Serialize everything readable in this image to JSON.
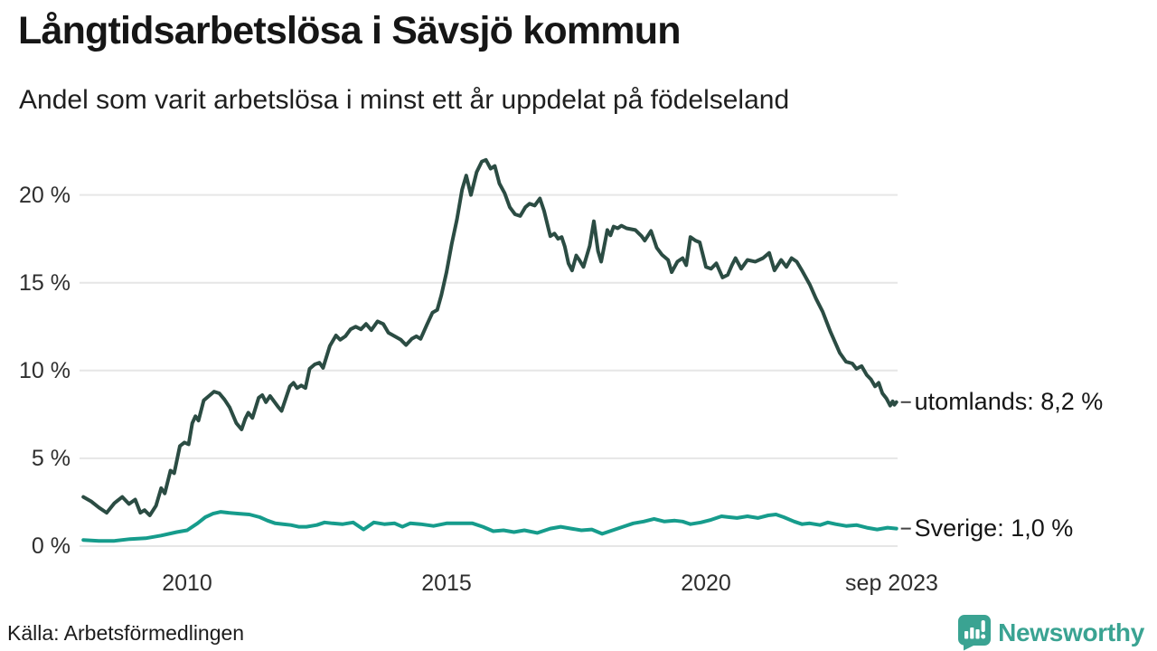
{
  "header": {
    "title": "Långtidsarbetslösa i Sävsjö kommun",
    "subtitle": "Andel som varit arbetslösa i minst ett år uppdelat på födelseland"
  },
  "footer": {
    "source": "Källa: Arbetsförmedlingen",
    "brand": "Newsworthy",
    "brand_color": "#3aa392",
    "logo_icon": "bar-chart-speech-bubble-icon"
  },
  "chart_data": {
    "type": "line",
    "title": "Långtidsarbetslösa i Sävsjö kommun",
    "subtitle": "Andel som varit arbetslösa i minst ett år uppdelat på födelseland",
    "grid": true,
    "legend_position": "end-of-line-labels",
    "background": "#ffffff",
    "gridline_color": "#e6e6e6",
    "x_axis": {
      "min": 2008.0,
      "max": 2023.75,
      "ticks": [
        {
          "value": 2010,
          "label": "2010"
        },
        {
          "value": 2015,
          "label": "2015"
        },
        {
          "value": 2020,
          "label": "2020"
        },
        {
          "value": 2023.58,
          "label": "sep 2023"
        }
      ]
    },
    "y_axis": {
      "min": 0,
      "max": 22.5,
      "unit": "%",
      "ticks": [
        {
          "value": 0,
          "label": "0 %"
        },
        {
          "value": 5,
          "label": "5 %"
        },
        {
          "value": 10,
          "label": "10 %"
        },
        {
          "value": 15,
          "label": "15 %"
        },
        {
          "value": 20,
          "label": "20 %"
        }
      ]
    },
    "series": [
      {
        "name": "utomlands",
        "color": "#2b4c43",
        "last_value_label": "8,2 %",
        "end_label": "utomlands: 8,2 %",
        "points": [
          [
            2008.0,
            2.8
          ],
          [
            2008.15,
            2.55
          ],
          [
            2008.3,
            2.2
          ],
          [
            2008.45,
            1.9
          ],
          [
            2008.6,
            2.45
          ],
          [
            2008.75,
            2.8
          ],
          [
            2008.88,
            2.4
          ],
          [
            2009.0,
            2.65
          ],
          [
            2009.1,
            1.9
          ],
          [
            2009.18,
            2.05
          ],
          [
            2009.28,
            1.75
          ],
          [
            2009.4,
            2.3
          ],
          [
            2009.5,
            3.3
          ],
          [
            2009.57,
            3.0
          ],
          [
            2009.68,
            4.3
          ],
          [
            2009.75,
            4.15
          ],
          [
            2009.86,
            5.7
          ],
          [
            2009.95,
            5.9
          ],
          [
            2010.03,
            5.8
          ],
          [
            2010.1,
            7.0
          ],
          [
            2010.16,
            7.4
          ],
          [
            2010.22,
            7.15
          ],
          [
            2010.32,
            8.3
          ],
          [
            2010.42,
            8.55
          ],
          [
            2010.52,
            8.8
          ],
          [
            2010.62,
            8.7
          ],
          [
            2010.72,
            8.35
          ],
          [
            2010.82,
            7.9
          ],
          [
            2010.95,
            7.0
          ],
          [
            2011.05,
            6.65
          ],
          [
            2011.12,
            7.25
          ],
          [
            2011.18,
            7.6
          ],
          [
            2011.26,
            7.3
          ],
          [
            2011.38,
            8.45
          ],
          [
            2011.45,
            8.6
          ],
          [
            2011.52,
            8.2
          ],
          [
            2011.6,
            8.55
          ],
          [
            2011.75,
            7.95
          ],
          [
            2011.82,
            7.7
          ],
          [
            2011.98,
            9.1
          ],
          [
            2012.05,
            9.3
          ],
          [
            2012.12,
            9.0
          ],
          [
            2012.2,
            9.15
          ],
          [
            2012.28,
            9.0
          ],
          [
            2012.36,
            10.1
          ],
          [
            2012.46,
            10.35
          ],
          [
            2012.55,
            10.45
          ],
          [
            2012.62,
            10.15
          ],
          [
            2012.75,
            11.4
          ],
          [
            2012.87,
            12.0
          ],
          [
            2012.95,
            11.75
          ],
          [
            2013.05,
            11.95
          ],
          [
            2013.15,
            12.35
          ],
          [
            2013.25,
            12.5
          ],
          [
            2013.35,
            12.35
          ],
          [
            2013.45,
            12.65
          ],
          [
            2013.55,
            12.3
          ],
          [
            2013.67,
            12.8
          ],
          [
            2013.78,
            12.65
          ],
          [
            2013.88,
            12.15
          ],
          [
            2014.0,
            11.95
          ],
          [
            2014.12,
            11.75
          ],
          [
            2014.22,
            11.45
          ],
          [
            2014.33,
            11.8
          ],
          [
            2014.42,
            11.95
          ],
          [
            2014.5,
            11.8
          ],
          [
            2014.62,
            12.6
          ],
          [
            2014.73,
            13.3
          ],
          [
            2014.82,
            13.45
          ],
          [
            2014.9,
            14.3
          ],
          [
            2015.0,
            15.6
          ],
          [
            2015.1,
            17.2
          ],
          [
            2015.2,
            18.6
          ],
          [
            2015.3,
            20.3
          ],
          [
            2015.38,
            21.1
          ],
          [
            2015.47,
            20.0
          ],
          [
            2015.58,
            21.3
          ],
          [
            2015.68,
            21.9
          ],
          [
            2015.76,
            22.0
          ],
          [
            2015.85,
            21.5
          ],
          [
            2015.93,
            21.65
          ],
          [
            2016.02,
            20.65
          ],
          [
            2016.12,
            20.1
          ],
          [
            2016.22,
            19.3
          ],
          [
            2016.32,
            18.9
          ],
          [
            2016.42,
            18.8
          ],
          [
            2016.52,
            19.3
          ],
          [
            2016.6,
            19.5
          ],
          [
            2016.7,
            19.4
          ],
          [
            2016.8,
            19.8
          ],
          [
            2016.88,
            19.1
          ],
          [
            2017.0,
            17.65
          ],
          [
            2017.08,
            17.8
          ],
          [
            2017.15,
            17.5
          ],
          [
            2017.22,
            17.6
          ],
          [
            2017.28,
            17.05
          ],
          [
            2017.35,
            16.1
          ],
          [
            2017.42,
            15.7
          ],
          [
            2017.5,
            16.55
          ],
          [
            2017.56,
            16.3
          ],
          [
            2017.64,
            15.9
          ],
          [
            2017.76,
            17.1
          ],
          [
            2017.84,
            18.5
          ],
          [
            2017.92,
            16.8
          ],
          [
            2017.98,
            16.2
          ],
          [
            2018.1,
            18.0
          ],
          [
            2018.16,
            17.7
          ],
          [
            2018.22,
            18.2
          ],
          [
            2018.3,
            18.1
          ],
          [
            2018.37,
            18.25
          ],
          [
            2018.47,
            18.1
          ],
          [
            2018.64,
            18.0
          ],
          [
            2018.76,
            17.65
          ],
          [
            2018.82,
            17.4
          ],
          [
            2018.94,
            17.95
          ],
          [
            2019.05,
            17.0
          ],
          [
            2019.15,
            16.6
          ],
          [
            2019.27,
            16.3
          ],
          [
            2019.34,
            15.6
          ],
          [
            2019.45,
            16.2
          ],
          [
            2019.55,
            16.4
          ],
          [
            2019.62,
            16.0
          ],
          [
            2019.7,
            17.6
          ],
          [
            2019.8,
            17.4
          ],
          [
            2019.88,
            17.3
          ],
          [
            2020.0,
            15.9
          ],
          [
            2020.1,
            15.8
          ],
          [
            2020.2,
            16.1
          ],
          [
            2020.32,
            15.3
          ],
          [
            2020.42,
            15.45
          ],
          [
            2020.5,
            16.0
          ],
          [
            2020.57,
            16.4
          ],
          [
            2020.68,
            15.8
          ],
          [
            2020.8,
            16.3
          ],
          [
            2020.95,
            16.2
          ],
          [
            2021.1,
            16.4
          ],
          [
            2021.22,
            16.7
          ],
          [
            2021.32,
            15.7
          ],
          [
            2021.45,
            16.3
          ],
          [
            2021.55,
            15.9
          ],
          [
            2021.65,
            16.4
          ],
          [
            2021.75,
            16.2
          ],
          [
            2021.85,
            15.7
          ],
          [
            2022.0,
            14.9
          ],
          [
            2022.12,
            14.1
          ],
          [
            2022.25,
            13.35
          ],
          [
            2022.4,
            12.2
          ],
          [
            2022.58,
            11.0
          ],
          [
            2022.7,
            10.5
          ],
          [
            2022.82,
            10.4
          ],
          [
            2022.9,
            10.1
          ],
          [
            2023.0,
            10.25
          ],
          [
            2023.1,
            9.75
          ],
          [
            2023.18,
            9.5
          ],
          [
            2023.26,
            9.1
          ],
          [
            2023.33,
            9.3
          ],
          [
            2023.4,
            8.7
          ],
          [
            2023.48,
            8.4
          ],
          [
            2023.55,
            8.0
          ],
          [
            2023.6,
            8.25
          ],
          [
            2023.63,
            8.05
          ],
          [
            2023.67,
            8.2
          ]
        ]
      },
      {
        "name": "Sverige",
        "color": "#169c8c",
        "last_value_label": "1,0 %",
        "end_label": "Sverige: 1,0 %",
        "points": [
          [
            2008.0,
            0.35
          ],
          [
            2008.3,
            0.3
          ],
          [
            2008.6,
            0.3
          ],
          [
            2008.9,
            0.4
          ],
          [
            2009.2,
            0.45
          ],
          [
            2009.5,
            0.6
          ],
          [
            2009.8,
            0.8
          ],
          [
            2010.0,
            0.9
          ],
          [
            2010.2,
            1.3
          ],
          [
            2010.35,
            1.65
          ],
          [
            2010.5,
            1.85
          ],
          [
            2010.65,
            1.95
          ],
          [
            2010.8,
            1.9
          ],
          [
            2011.0,
            1.85
          ],
          [
            2011.2,
            1.8
          ],
          [
            2011.4,
            1.65
          ],
          [
            2011.55,
            1.45
          ],
          [
            2011.7,
            1.3
          ],
          [
            2011.85,
            1.25
          ],
          [
            2012.0,
            1.2
          ],
          [
            2012.15,
            1.1
          ],
          [
            2012.3,
            1.1
          ],
          [
            2012.5,
            1.2
          ],
          [
            2012.65,
            1.35
          ],
          [
            2012.8,
            1.3
          ],
          [
            2013.0,
            1.25
          ],
          [
            2013.2,
            1.35
          ],
          [
            2013.4,
            0.95
          ],
          [
            2013.6,
            1.35
          ],
          [
            2013.8,
            1.25
          ],
          [
            2014.0,
            1.3
          ],
          [
            2014.15,
            1.1
          ],
          [
            2014.3,
            1.3
          ],
          [
            2014.5,
            1.25
          ],
          [
            2014.75,
            1.15
          ],
          [
            2015.0,
            1.3
          ],
          [
            2015.25,
            1.3
          ],
          [
            2015.5,
            1.3
          ],
          [
            2015.7,
            1.1
          ],
          [
            2015.9,
            0.85
          ],
          [
            2016.1,
            0.9
          ],
          [
            2016.3,
            0.8
          ],
          [
            2016.5,
            0.9
          ],
          [
            2016.75,
            0.75
          ],
          [
            2017.0,
            1.0
          ],
          [
            2017.2,
            1.1
          ],
          [
            2017.4,
            1.0
          ],
          [
            2017.6,
            0.9
          ],
          [
            2017.8,
            0.95
          ],
          [
            2018.0,
            0.7
          ],
          [
            2018.2,
            0.9
          ],
          [
            2018.4,
            1.1
          ],
          [
            2018.6,
            1.3
          ],
          [
            2018.8,
            1.4
          ],
          [
            2019.0,
            1.55
          ],
          [
            2019.2,
            1.4
          ],
          [
            2019.4,
            1.45
          ],
          [
            2019.55,
            1.4
          ],
          [
            2019.7,
            1.25
          ],
          [
            2019.9,
            1.35
          ],
          [
            2020.1,
            1.5
          ],
          [
            2020.3,
            1.7
          ],
          [
            2020.45,
            1.65
          ],
          [
            2020.6,
            1.6
          ],
          [
            2020.8,
            1.7
          ],
          [
            2021.0,
            1.6
          ],
          [
            2021.2,
            1.75
          ],
          [
            2021.35,
            1.8
          ],
          [
            2021.5,
            1.65
          ],
          [
            2021.7,
            1.4
          ],
          [
            2021.85,
            1.25
          ],
          [
            2022.0,
            1.3
          ],
          [
            2022.2,
            1.2
          ],
          [
            2022.35,
            1.35
          ],
          [
            2022.5,
            1.25
          ],
          [
            2022.7,
            1.15
          ],
          [
            2022.9,
            1.2
          ],
          [
            2023.1,
            1.05
          ],
          [
            2023.3,
            0.95
          ],
          [
            2023.5,
            1.05
          ],
          [
            2023.67,
            1.0
          ]
        ]
      }
    ]
  }
}
